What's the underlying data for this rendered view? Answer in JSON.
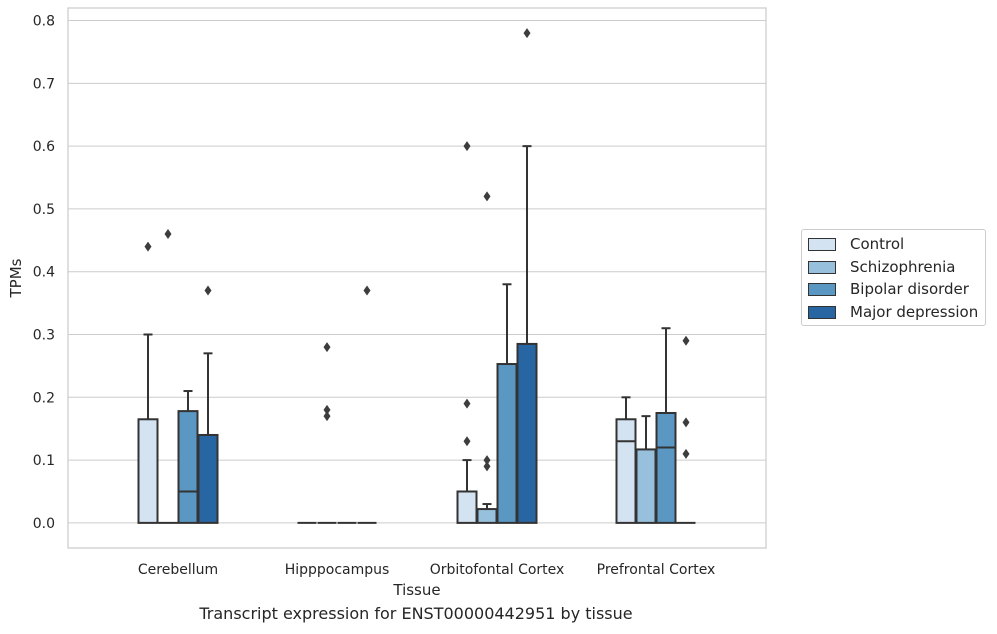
{
  "caption": "Transcript expression for ENST00000442951 by tissue",
  "chart_data": {
    "type": "box",
    "xlabel": "Tissue",
    "ylabel": "TPMs",
    "ylim": [
      -0.04,
      0.82
    ],
    "yticks": [
      "0.0",
      "0.1",
      "0.2",
      "0.3",
      "0.4",
      "0.5",
      "0.6",
      "0.7",
      "0.8"
    ],
    "grid": "horizontal",
    "legend_position": "right",
    "categories": [
      "Cerebellum",
      "Hipppocampus",
      "Orbitofontal Cortex",
      "Prefrontal Cortex"
    ],
    "series": [
      {
        "name": "Control",
        "color": "#d4e3f1",
        "boxes": [
          {
            "q1": 0,
            "median": 0,
            "q3": 0.165,
            "whisker_low": 0,
            "whisker_high": 0.3,
            "outliers": [
              0.44
            ]
          },
          {
            "q1": 0,
            "median": 0,
            "q3": 0,
            "whisker_low": 0,
            "whisker_high": 0,
            "outliers": []
          },
          {
            "q1": 0,
            "median": 0,
            "q3": 0.05,
            "whisker_low": 0,
            "whisker_high": 0.1,
            "outliers": [
              0.13,
              0.19,
              0.6
            ]
          },
          {
            "q1": 0,
            "median": 0.13,
            "q3": 0.165,
            "whisker_low": 0,
            "whisker_high": 0.2,
            "outliers": []
          }
        ]
      },
      {
        "name": "Schizophrenia",
        "color": "#97c0dd",
        "boxes": [
          {
            "q1": 0,
            "median": 0,
            "q3": 0,
            "whisker_low": 0,
            "whisker_high": 0,
            "outliers": [
              0.46
            ]
          },
          {
            "q1": 0,
            "median": 0,
            "q3": 0,
            "whisker_low": 0,
            "whisker_high": 0,
            "outliers": [
              0.17,
              0.18,
              0.28
            ]
          },
          {
            "q1": 0,
            "median": 0,
            "q3": 0.022,
            "whisker_low": 0,
            "whisker_high": 0.03,
            "outliers": [
              0.09,
              0.1,
              0.52
            ]
          },
          {
            "q1": 0,
            "median": 0,
            "q3": 0.117,
            "whisker_low": 0,
            "whisker_high": 0.17,
            "outliers": []
          }
        ]
      },
      {
        "name": "Bipolar disorder",
        "color": "#5a97c2",
        "boxes": [
          {
            "q1": 0,
            "median": 0.05,
            "q3": 0.178,
            "whisker_low": 0,
            "whisker_high": 0.21,
            "outliers": []
          },
          {
            "q1": 0,
            "median": 0,
            "q3": 0,
            "whisker_low": 0,
            "whisker_high": 0,
            "outliers": []
          },
          {
            "q1": 0,
            "median": 0,
            "q3": 0.253,
            "whisker_low": 0,
            "whisker_high": 0.38,
            "outliers": []
          },
          {
            "q1": 0,
            "median": 0.12,
            "q3": 0.175,
            "whisker_low": 0,
            "whisker_high": 0.31,
            "outliers": []
          }
        ]
      },
      {
        "name": "Major depression",
        "color": "#2866a3",
        "boxes": [
          {
            "q1": 0,
            "median": 0,
            "q3": 0.14,
            "whisker_low": 0,
            "whisker_high": 0.27,
            "outliers": [
              0.37
            ]
          },
          {
            "q1": 0,
            "median": 0,
            "q3": 0,
            "whisker_low": 0,
            "whisker_high": 0,
            "outliers": [
              0.37
            ]
          },
          {
            "q1": 0,
            "median": 0,
            "q3": 0.285,
            "whisker_low": 0,
            "whisker_high": 0.6,
            "outliers": [
              0.78
            ]
          },
          {
            "q1": 0,
            "median": 0,
            "q3": 0,
            "whisker_low": 0,
            "whisker_high": 0,
            "outliers": [
              0.11,
              0.16,
              0.29
            ]
          }
        ]
      }
    ]
  }
}
